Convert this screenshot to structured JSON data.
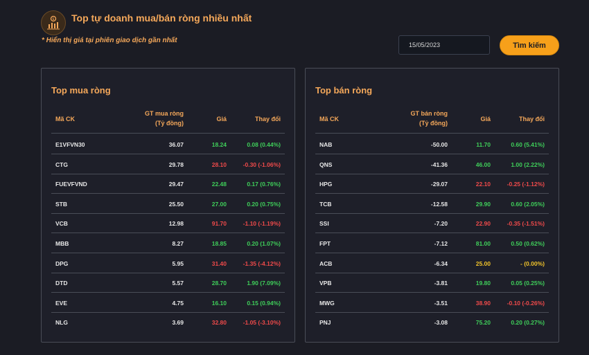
{
  "header": {
    "title": "Top tự doanh mua/bán ròng nhiều nhất",
    "subtitle": "* Hiển thị giá tại phiên giao dịch gần nhất",
    "logo_icon": "chart-coin-icon"
  },
  "search": {
    "date_value": "15/05/2023",
    "button_label": "Tìm kiếm"
  },
  "colors": {
    "accent": "#f5a85a",
    "button": "#f7a01a",
    "up": "#3fcf5a",
    "down": "#f04a4a",
    "unchanged": "#f2c42a"
  },
  "buy_table": {
    "title": "Top mua ròng",
    "headers": {
      "ticker": "Mã CK",
      "value_line1": "GT mua ròng",
      "value_line2": "(Tỷ đồng)",
      "price": "Giá",
      "change": "Thay đổi"
    },
    "rows": [
      {
        "ticker": "E1VFVN30",
        "value": "36.07",
        "price": "18.24",
        "change": "0.08 (0.44%)",
        "trend": "up"
      },
      {
        "ticker": "CTG",
        "value": "29.78",
        "price": "28.10",
        "change": "-0.30 (-1.06%)",
        "trend": "down"
      },
      {
        "ticker": "FUEVFVND",
        "value": "29.47",
        "price": "22.48",
        "change": "0.17 (0.76%)",
        "trend": "up"
      },
      {
        "ticker": "STB",
        "value": "25.50",
        "price": "27.00",
        "change": "0.20 (0.75%)",
        "trend": "up"
      },
      {
        "ticker": "VCB",
        "value": "12.98",
        "price": "91.70",
        "change": "-1.10 (-1.19%)",
        "trend": "down"
      },
      {
        "ticker": "MBB",
        "value": "8.27",
        "price": "18.85",
        "change": "0.20 (1.07%)",
        "trend": "up"
      },
      {
        "ticker": "DPG",
        "value": "5.95",
        "price": "31.40",
        "change": "-1.35 (-4.12%)",
        "trend": "down"
      },
      {
        "ticker": "DTD",
        "value": "5.57",
        "price": "28.70",
        "change": "1.90 (7.09%)",
        "trend": "up"
      },
      {
        "ticker": "EVE",
        "value": "4.75",
        "price": "16.10",
        "change": "0.15 (0.94%)",
        "trend": "up"
      },
      {
        "ticker": "NLG",
        "value": "3.69",
        "price": "32.80",
        "change": "-1.05 (-3.10%)",
        "trend": "down"
      }
    ]
  },
  "sell_table": {
    "title": "Top bán ròng",
    "headers": {
      "ticker": "Mã CK",
      "value_line1": "GT bán ròng",
      "value_line2": "(Tỷ đồng)",
      "price": "Giá",
      "change": "Thay đổi"
    },
    "rows": [
      {
        "ticker": "NAB",
        "value": "-50.00",
        "price": "11.70",
        "change": "0.60 (5.41%)",
        "trend": "up"
      },
      {
        "ticker": "QNS",
        "value": "-41.36",
        "price": "46.00",
        "change": "1.00 (2.22%)",
        "trend": "up"
      },
      {
        "ticker": "HPG",
        "value": "-29.07",
        "price": "22.10",
        "change": "-0.25 (-1.12%)",
        "trend": "down"
      },
      {
        "ticker": "TCB",
        "value": "-12.58",
        "price": "29.90",
        "change": "0.60 (2.05%)",
        "trend": "up"
      },
      {
        "ticker": "SSI",
        "value": "-7.20",
        "price": "22.90",
        "change": "-0.35 (-1.51%)",
        "trend": "down"
      },
      {
        "ticker": "FPT",
        "value": "-7.12",
        "price": "81.00",
        "change": "0.50 (0.62%)",
        "trend": "up"
      },
      {
        "ticker": "ACB",
        "value": "-6.34",
        "price": "25.00",
        "change": "- (0.00%)",
        "trend": "unchanged"
      },
      {
        "ticker": "VPB",
        "value": "-3.81",
        "price": "19.80",
        "change": "0.05 (0.25%)",
        "trend": "up"
      },
      {
        "ticker": "MWG",
        "value": "-3.51",
        "price": "38.90",
        "change": "-0.10 (-0.26%)",
        "trend": "down"
      },
      {
        "ticker": "PNJ",
        "value": "-3.08",
        "price": "75.20",
        "change": "0.20 (0.27%)",
        "trend": "up"
      }
    ]
  }
}
